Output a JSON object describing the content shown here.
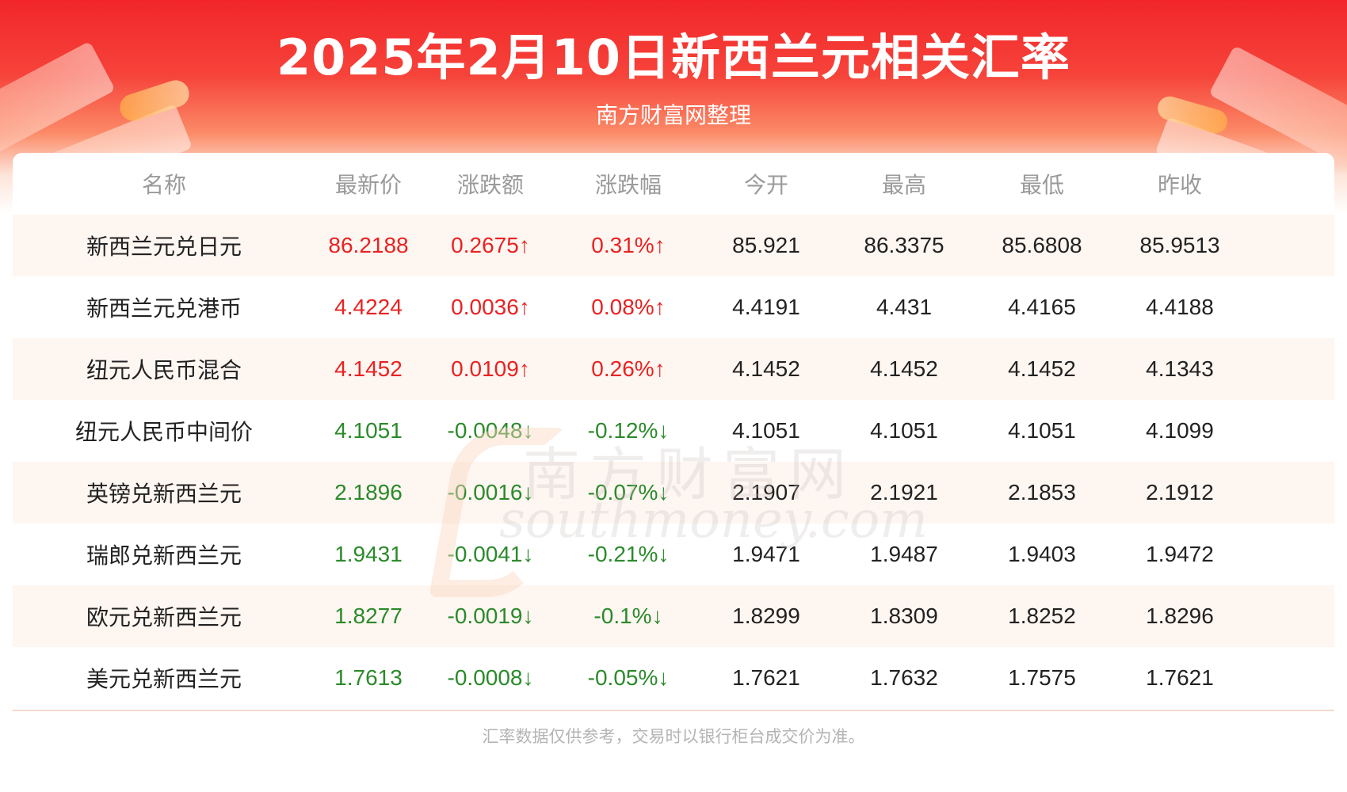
{
  "header": {
    "title": "2025年2月10日新西兰元相关汇率",
    "subtitle": "南方财富网整理"
  },
  "table": {
    "columns": [
      "名称",
      "最新价",
      "涨跌额",
      "涨跌幅",
      "今开",
      "最高",
      "最低",
      "昨收"
    ],
    "rows": [
      {
        "name": "新西兰元兑日元",
        "latest": "86.2188",
        "change": "0.2675↑",
        "pct": "0.31%↑",
        "open": "85.921",
        "high": "86.3375",
        "low": "85.6808",
        "prev": "85.9513",
        "dir": "up"
      },
      {
        "name": "新西兰元兑港币",
        "latest": "4.4224",
        "change": "0.0036↑",
        "pct": "0.08%↑",
        "open": "4.4191",
        "high": "4.431",
        "low": "4.4165",
        "prev": "4.4188",
        "dir": "up"
      },
      {
        "name": "纽元人民币混合",
        "latest": "4.1452",
        "change": "0.0109↑",
        "pct": "0.26%↑",
        "open": "4.1452",
        "high": "4.1452",
        "low": "4.1452",
        "prev": "4.1343",
        "dir": "up"
      },
      {
        "name": "纽元人民币中间价",
        "latest": "4.1051",
        "change": "-0.0048↓",
        "pct": "-0.12%↓",
        "open": "4.1051",
        "high": "4.1051",
        "low": "4.1051",
        "prev": "4.1099",
        "dir": "down"
      },
      {
        "name": "英镑兑新西兰元",
        "latest": "2.1896",
        "change": "-0.0016↓",
        "pct": "-0.07%↓",
        "open": "2.1907",
        "high": "2.1921",
        "low": "2.1853",
        "prev": "2.1912",
        "dir": "down"
      },
      {
        "name": "瑞郎兑新西兰元",
        "latest": "1.9431",
        "change": "-0.0041↓",
        "pct": "-0.21%↓",
        "open": "1.9471",
        "high": "1.9487",
        "low": "1.9403",
        "prev": "1.9472",
        "dir": "down"
      },
      {
        "name": "欧元兑新西兰元",
        "latest": "1.8277",
        "change": "-0.0019↓",
        "pct": "-0.1%↓",
        "open": "1.8299",
        "high": "1.8309",
        "low": "1.8252",
        "prev": "1.8296",
        "dir": "down"
      },
      {
        "name": "美元兑新西兰元",
        "latest": "1.7613",
        "change": "-0.0008↓",
        "pct": "-0.05%↓",
        "open": "1.7621",
        "high": "1.7632",
        "low": "1.7575",
        "prev": "1.7621",
        "dir": "down"
      }
    ]
  },
  "watermark": {
    "cn": "南方财富网",
    "en": "southmoney.com"
  },
  "footer": {
    "note": "汇率数据仅供参考，交易时以银行柜台成交价为准。"
  },
  "colors": {
    "up": "#e92222",
    "down": "#2b8a2b",
    "banner": "#f2262a"
  }
}
